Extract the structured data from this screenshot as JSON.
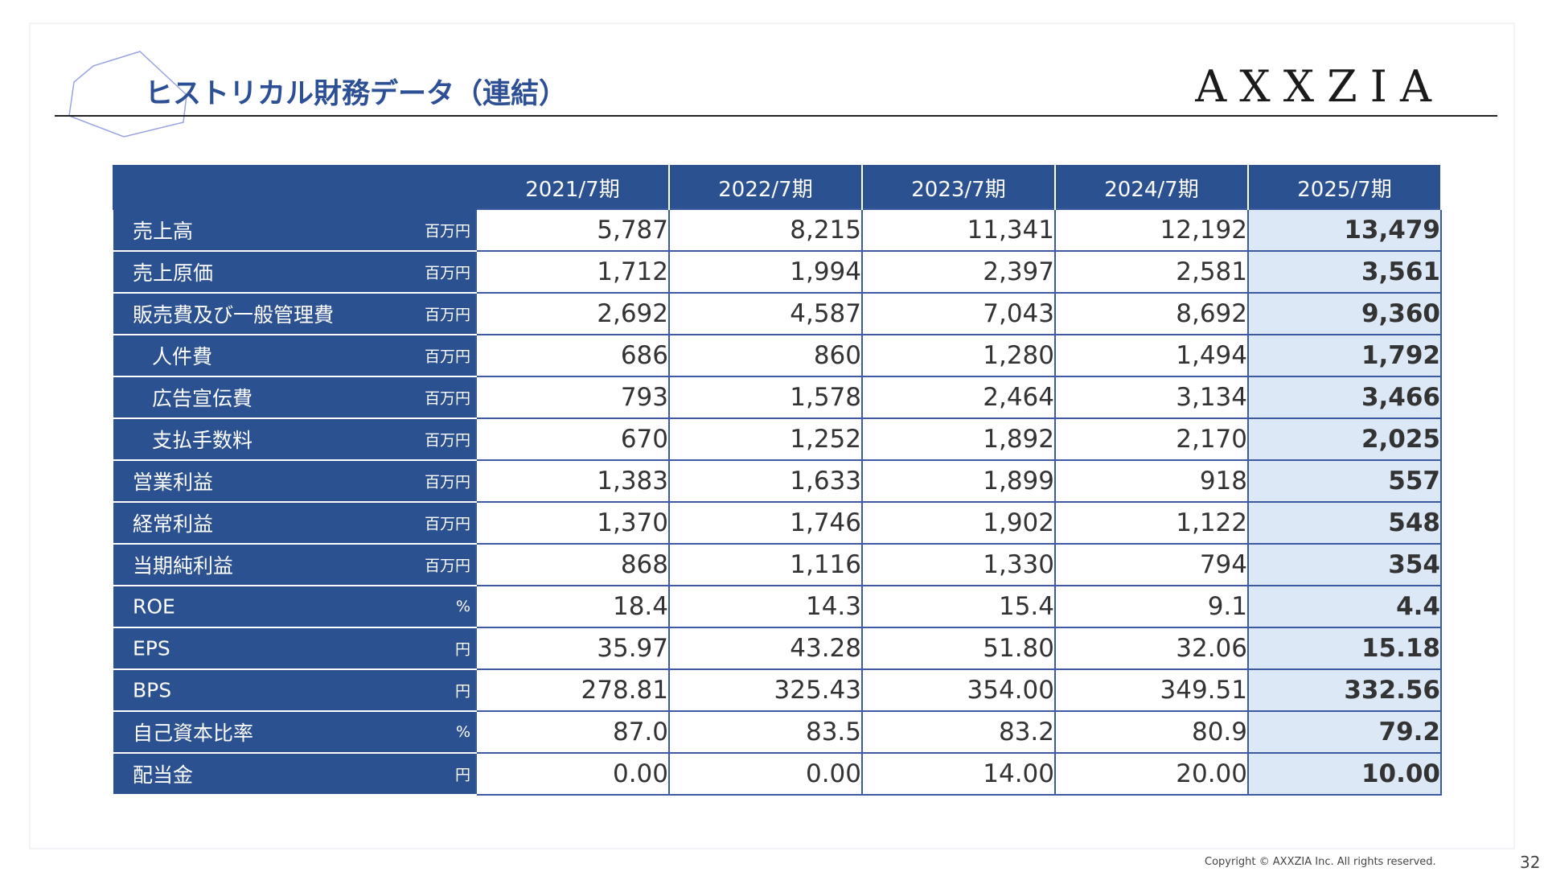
{
  "header": {
    "title": "ヒストリカル財務データ（連結）",
    "logo_text": "AXXZIA"
  },
  "colors": {
    "header_blue": "#2c5191",
    "title_blue": "#2c4f95",
    "highlight": "#dce8f6",
    "border": "#3b5aa0"
  },
  "table": {
    "columns": [
      "2021/7期",
      "2022/7期",
      "2023/7期",
      "2024/7期",
      "2025/7期"
    ],
    "rows": [
      {
        "label": "売上高",
        "unit": "百万円",
        "indent": false,
        "values": [
          "5,787",
          "8,215",
          "11,341",
          "12,192",
          "13,479"
        ]
      },
      {
        "label": "売上原価",
        "unit": "百万円",
        "indent": false,
        "values": [
          "1,712",
          "1,994",
          "2,397",
          "2,581",
          "3,561"
        ]
      },
      {
        "label": "販売費及び一般管理費",
        "unit": "百万円",
        "indent": false,
        "values": [
          "2,692",
          "4,587",
          "7,043",
          "8,692",
          "9,360"
        ]
      },
      {
        "label": "人件費",
        "unit": "百万円",
        "indent": true,
        "values": [
          "686",
          "860",
          "1,280",
          "1,494",
          "1,792"
        ]
      },
      {
        "label": "広告宣伝費",
        "unit": "百万円",
        "indent": true,
        "values": [
          "793",
          "1,578",
          "2,464",
          "3,134",
          "3,466"
        ]
      },
      {
        "label": "支払手数料",
        "unit": "百万円",
        "indent": true,
        "values": [
          "670",
          "1,252",
          "1,892",
          "2,170",
          "2,025"
        ]
      },
      {
        "label": "営業利益",
        "unit": "百万円",
        "indent": false,
        "values": [
          "1,383",
          "1,633",
          "1,899",
          "918",
          "557"
        ]
      },
      {
        "label": "経常利益",
        "unit": "百万円",
        "indent": false,
        "values": [
          "1,370",
          "1,746",
          "1,902",
          "1,122",
          "548"
        ]
      },
      {
        "label": "当期純利益",
        "unit": "百万円",
        "indent": false,
        "values": [
          "868",
          "1,116",
          "1,330",
          "794",
          "354"
        ]
      },
      {
        "label": "ROE",
        "unit": "%",
        "indent": false,
        "values": [
          "18.4",
          "14.3",
          "15.4",
          "9.1",
          "4.4"
        ]
      },
      {
        "label": "EPS",
        "unit": "円",
        "indent": false,
        "values": [
          "35.97",
          "43.28",
          "51.80",
          "32.06",
          "15.18"
        ]
      },
      {
        "label": "BPS",
        "unit": "円",
        "indent": false,
        "values": [
          "278.81",
          "325.43",
          "354.00",
          "349.51",
          "332.56"
        ]
      },
      {
        "label": "自己資本比率",
        "unit": "%",
        "indent": false,
        "values": [
          "87.0",
          "83.5",
          "83.2",
          "80.9",
          "79.2"
        ]
      },
      {
        "label": "配当金",
        "unit": "円",
        "indent": false,
        "values": [
          "0.00",
          "0.00",
          "14.00",
          "20.00",
          "10.00"
        ]
      }
    ]
  },
  "footer": {
    "copyright": "Copyright © AXXZIA Inc. All rights reserved.",
    "page_number": "32"
  }
}
